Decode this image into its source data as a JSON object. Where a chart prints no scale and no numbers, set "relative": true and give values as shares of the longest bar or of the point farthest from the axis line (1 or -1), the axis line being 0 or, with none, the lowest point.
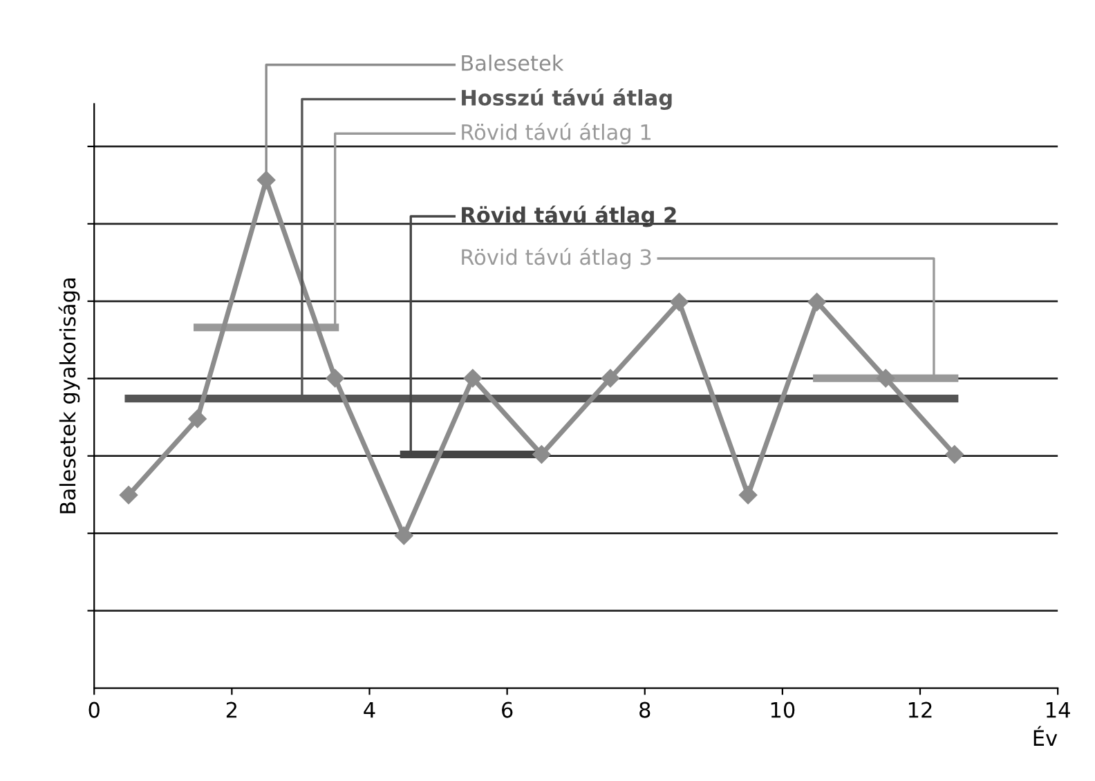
{
  "chart_data": {
    "type": "line",
    "xlabel": "Év",
    "ylabel": "Balesetek gyakorisága",
    "relative": true,
    "xlim": [
      0,
      14
    ],
    "xticks": [
      0,
      2,
      4,
      6,
      8,
      10,
      12,
      14
    ],
    "grid": "y",
    "legend": false,
    "series": [
      {
        "name": "Balesetek",
        "color": "#8c8c8c",
        "marker": "diamond",
        "x": [
          0.5,
          1.5,
          2.5,
          3.5,
          4.5,
          5.5,
          6.5,
          7.5,
          8.5,
          9.5,
          10.5,
          11.5,
          12.5
        ],
        "values": [
          0.38,
          0.53,
          1,
          0.61,
          0.3,
          0.61,
          0.46,
          0.61,
          0.76,
          0.38,
          0.76,
          0.61,
          0.46
        ]
      },
      {
        "name": "Hosszú távú átlag",
        "color": "#555555",
        "x": [
          0.5,
          12.5
        ],
        "values": [
          0.57,
          0.57
        ]
      },
      {
        "name": "Rövid távú átlag 1",
        "color": "#999999",
        "x": [
          1.5,
          3.5
        ],
        "values": [
          0.71,
          0.71
        ]
      },
      {
        "name": "Rövid távú átlag 2",
        "color": "#444444",
        "x": [
          4.5,
          6.5
        ],
        "values": [
          0.46,
          0.46
        ]
      },
      {
        "name": "Rövid távú átlag 3",
        "color": "#999999",
        "x": [
          10.5,
          12.5
        ],
        "values": [
          0.61,
          0.61
        ]
      }
    ]
  }
}
